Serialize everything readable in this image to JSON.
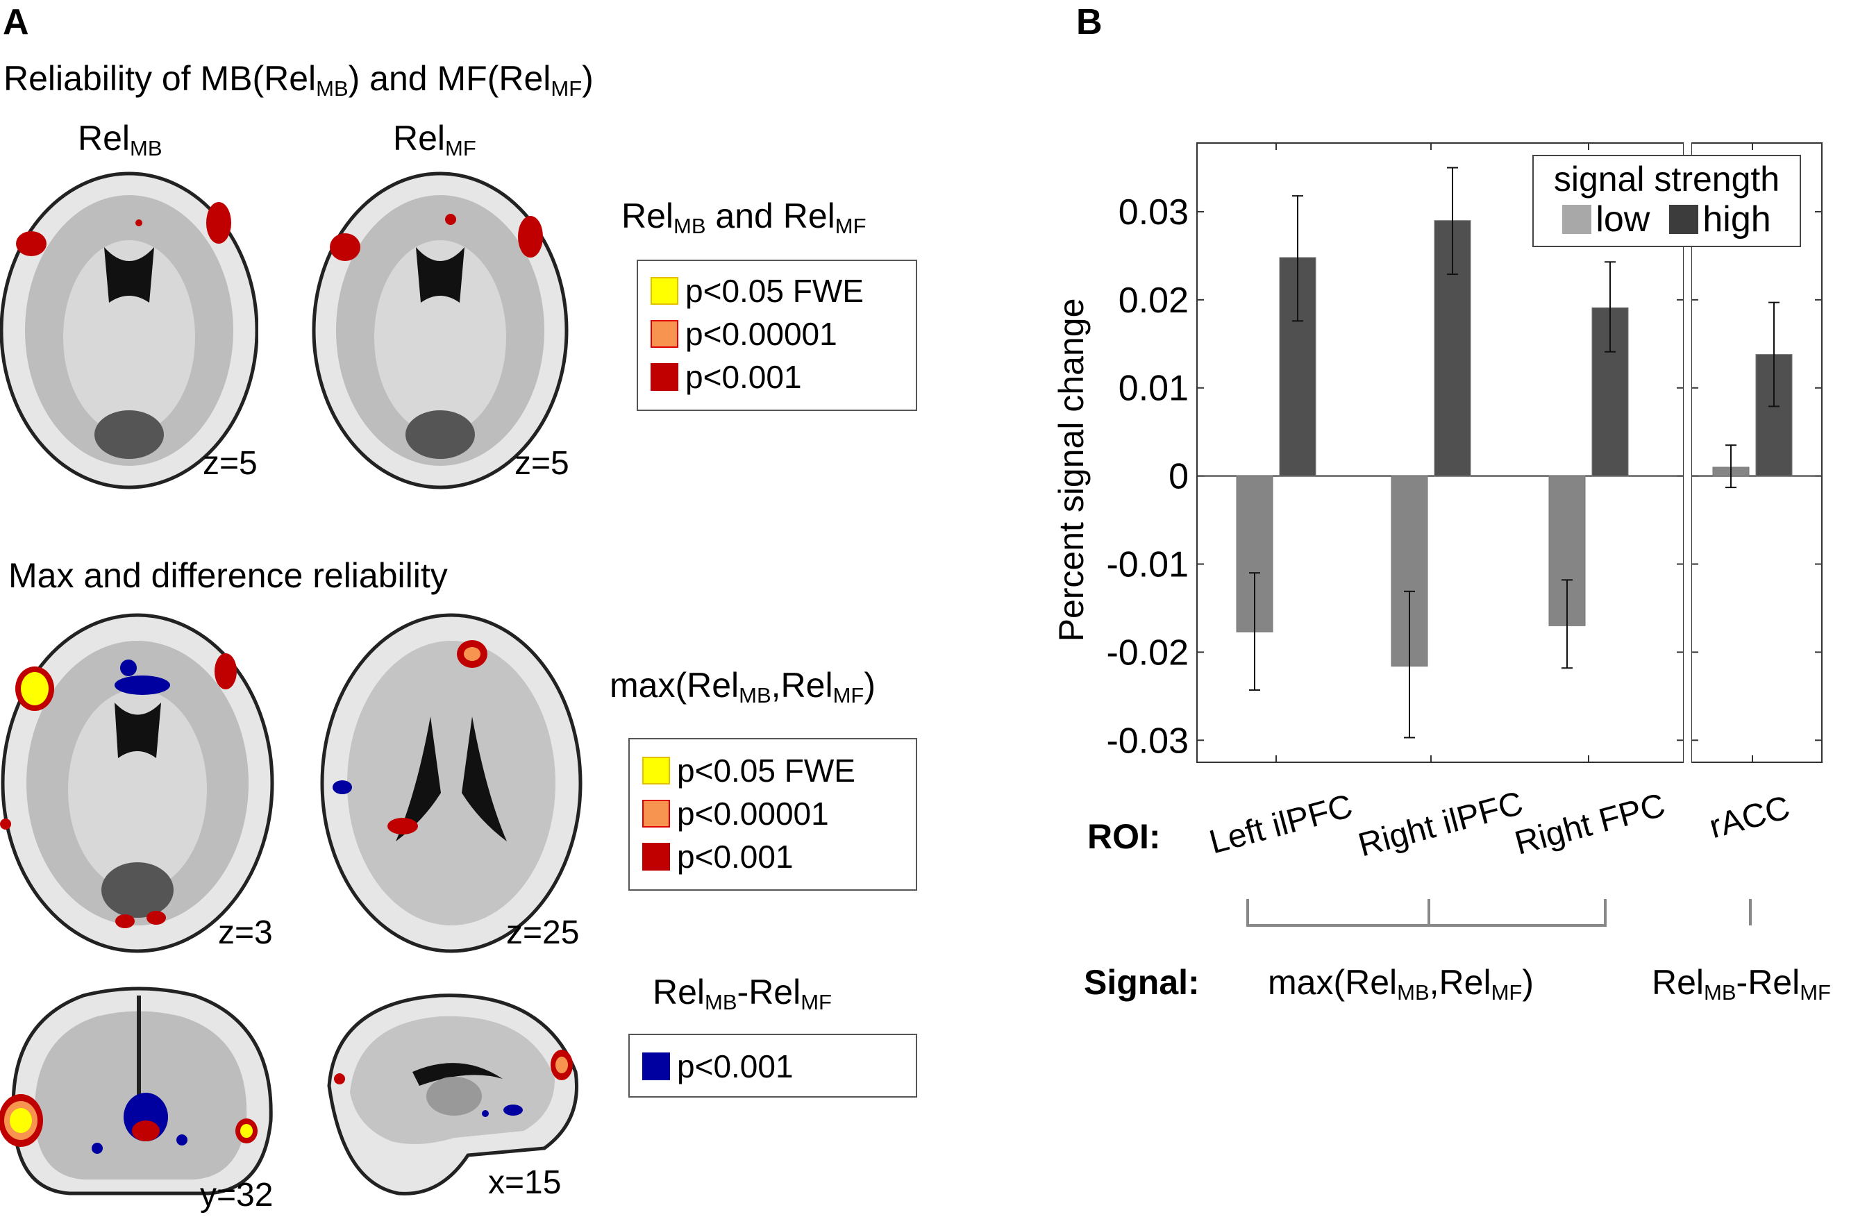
{
  "panel_a": {
    "letter": "A",
    "section1_title": {
      "pre": "Reliability of MB(",
      "rel1": "Rel",
      "sub1": "MB",
      "mid": ") and MF(",
      "rel2": "Rel",
      "sub2": "MF",
      "post": ")"
    },
    "col_label_mb": {
      "base": "Rel",
      "sub": "MB"
    },
    "col_label_mf": {
      "base": "Rel",
      "sub": "MF"
    },
    "slice_labels": [
      "z=5",
      "z=5",
      "z=3",
      "z=25",
      "y=32",
      "x=15"
    ],
    "legend1": {
      "title": {
        "rel1": "Rel",
        "sub1": "MB",
        "mid": " and ",
        "rel2": "Rel",
        "sub2": "MF"
      },
      "items": [
        {
          "label": "p<0.05 FWE",
          "color": "#ffff00"
        },
        {
          "label": "p<0.00001",
          "color": "#f7944f"
        },
        {
          "label": "p<0.001",
          "color": "#c00000"
        }
      ]
    },
    "section2_title": "Max and difference reliability",
    "legend2": {
      "title": {
        "pre": "max(",
        "rel1": "Rel",
        "sub1": "MB",
        "mid": ",",
        "rel2": "Rel",
        "sub2": "MF",
        "post": ")"
      },
      "items": [
        {
          "label": "p<0.05 FWE",
          "color": "#ffff00"
        },
        {
          "label": "p<0.00001",
          "color": "#f7944f"
        },
        {
          "label": "p<0.001",
          "color": "#c00000"
        }
      ]
    },
    "legend3": {
      "title": {
        "rel1": "Rel",
        "sub1": "MB",
        "mid": "-",
        "rel2": "Rel",
        "sub2": "MF"
      },
      "items": [
        {
          "label": "p<0.001",
          "color": "#0000a0"
        }
      ]
    }
  },
  "panel_b": {
    "letter": "B",
    "roi_label": "ROI:",
    "signal_label": "Signal:",
    "signal_max": {
      "pre": "max(",
      "rel1": "Rel",
      "sub1": "MB",
      "mid": ",",
      "rel2": "Rel",
      "sub2": "MF",
      "post": ")"
    },
    "signal_diff": {
      "rel1": "Rel",
      "sub1": "MB",
      "mid": "-",
      "rel2": "Rel",
      "sub2": "MF"
    }
  },
  "chart_data": {
    "type": "bar",
    "title": "",
    "xlabel": "ROI",
    "ylabel": "Percent signal change",
    "ylim": [
      -0.0325,
      0.0378
    ],
    "yticks": [
      -0.03,
      -0.02,
      -0.01,
      0,
      0.01,
      0.02,
      0.03
    ],
    "ytick_labels": [
      "-0.03",
      "-0.02",
      "-0.01",
      "0",
      "0.01",
      "0.02",
      "0.03"
    ],
    "categories": [
      "Left ilPFC",
      "Right ilPFC",
      "Right FPC",
      "rACC"
    ],
    "legend": {
      "title": "signal strength",
      "placement": "top-right"
    },
    "series": [
      {
        "name": "low",
        "color": "#858585",
        "legend_color": "#a8a8a8",
        "values": [
          -0.0177,
          -0.0216,
          -0.017,
          0.001
        ],
        "err_low": [
          -0.0243,
          -0.0297,
          -0.0218,
          -0.0013
        ],
        "err_high": [
          -0.011,
          -0.0131,
          -0.0118,
          0.0035
        ]
      },
      {
        "name": "high",
        "color": "#505050",
        "legend_color": "#3c3c3c",
        "values": [
          0.0248,
          0.029,
          0.0191,
          0.0138
        ],
        "err_low": [
          0.0176,
          0.0229,
          0.0141,
          0.0079
        ],
        "err_high": [
          0.0318,
          0.035,
          0.0243,
          0.0197
        ]
      }
    ],
    "signal_groups": [
      "max(RelMB,RelMF)",
      "RelMB-RelMF"
    ]
  }
}
